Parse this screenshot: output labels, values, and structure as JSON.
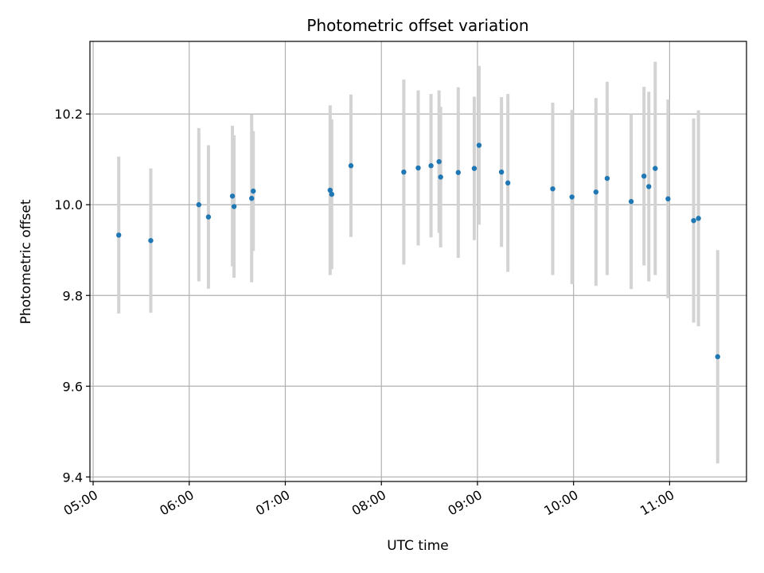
{
  "chart_data": {
    "type": "scatter",
    "title": "Photometric offset variation",
    "xlabel": "UTC time",
    "ylabel": "Photometric offset",
    "xlim": [
      "04:58",
      "11:48"
    ],
    "ylim": [
      9.39,
      10.36
    ],
    "xticks": [
      "05:00",
      "06:00",
      "07:00",
      "08:00",
      "09:00",
      "10:00",
      "11:00"
    ],
    "yticks": [
      9.4,
      9.6,
      9.8,
      10.0,
      10.2
    ],
    "ytick_labels": [
      "9.4",
      "9.6",
      "9.8",
      "10.0",
      "10.2"
    ],
    "grid": true,
    "colors": {
      "point": "#1f77b4",
      "errorbar": "#d3d3d3",
      "grid": "#b0b0b0"
    },
    "points": [
      {
        "x": "05:16",
        "y": 9.933,
        "yerr": 0.173
      },
      {
        "x": "05:36",
        "y": 9.921,
        "yerr": 0.159
      },
      {
        "x": "06:06",
        "y": 10.0,
        "yerr": 0.169
      },
      {
        "x": "06:12",
        "y": 9.973,
        "yerr": 0.158
      },
      {
        "x": "06:27",
        "y": 10.019,
        "yerr": 0.155
      },
      {
        "x": "06:28",
        "y": 9.996,
        "yerr": 0.157
      },
      {
        "x": "06:39",
        "y": 10.014,
        "yerr": 0.185
      },
      {
        "x": "06:40",
        "y": 10.03,
        "yerr": 0.132
      },
      {
        "x": "07:28",
        "y": 10.032,
        "yerr": 0.187
      },
      {
        "x": "07:29",
        "y": 10.023,
        "yerr": 0.165
      },
      {
        "x": "07:41",
        "y": 10.086,
        "yerr": 0.157
      },
      {
        "x": "08:14",
        "y": 10.072,
        "yerr": 0.204
      },
      {
        "x": "08:23",
        "y": 10.081,
        "yerr": 0.171
      },
      {
        "x": "08:31",
        "y": 10.086,
        "yerr": 0.158
      },
      {
        "x": "08:36",
        "y": 10.095,
        "yerr": 0.157
      },
      {
        "x": "08:37",
        "y": 10.061,
        "yerr": 0.155
      },
      {
        "x": "08:48",
        "y": 10.071,
        "yerr": 0.188
      },
      {
        "x": "08:58",
        "y": 10.08,
        "yerr": 0.158
      },
      {
        "x": "09:01",
        "y": 10.131,
        "yerr": 0.175
      },
      {
        "x": "09:15",
        "y": 10.072,
        "yerr": 0.165
      },
      {
        "x": "09:19",
        "y": 10.048,
        "yerr": 0.196
      },
      {
        "x": "09:47",
        "y": 10.035,
        "yerr": 0.19
      },
      {
        "x": "09:59",
        "y": 10.017,
        "yerr": 0.192
      },
      {
        "x": "10:14",
        "y": 10.028,
        "yerr": 0.207
      },
      {
        "x": "10:21",
        "y": 10.058,
        "yerr": 0.213
      },
      {
        "x": "10:36",
        "y": 10.007,
        "yerr": 0.193
      },
      {
        "x": "10:44",
        "y": 10.063,
        "yerr": 0.197
      },
      {
        "x": "10:47",
        "y": 10.04,
        "yerr": 0.209
      },
      {
        "x": "10:51",
        "y": 10.08,
        "yerr": 0.235
      },
      {
        "x": "10:59",
        "y": 10.013,
        "yerr": 0.219
      },
      {
        "x": "11:15",
        "y": 9.965,
        "yerr": 0.225
      },
      {
        "x": "11:18",
        "y": 9.97,
        "yerr": 0.238
      },
      {
        "x": "11:30",
        "y": 9.665,
        "yerr": 0.235
      }
    ]
  }
}
